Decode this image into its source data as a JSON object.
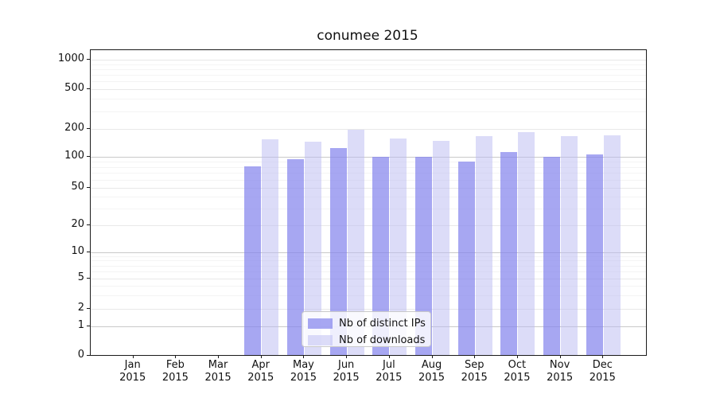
{
  "chart_data": {
    "type": "bar",
    "title": "conumee 2015",
    "categories": [
      {
        "month": "Jan",
        "year": "2015"
      },
      {
        "month": "Feb",
        "year": "2015"
      },
      {
        "month": "Mar",
        "year": "2015"
      },
      {
        "month": "Apr",
        "year": "2015"
      },
      {
        "month": "May",
        "year": "2015"
      },
      {
        "month": "Jun",
        "year": "2015"
      },
      {
        "month": "Jul",
        "year": "2015"
      },
      {
        "month": "Aug",
        "year": "2015"
      },
      {
        "month": "Sep",
        "year": "2015"
      },
      {
        "month": "Oct",
        "year": "2015"
      },
      {
        "month": "Nov",
        "year": "2015"
      },
      {
        "month": "Dec",
        "year": "2015"
      }
    ],
    "series": [
      {
        "name": "Nb of distinct IPs",
        "color": "#8787ed",
        "alpha": 0.73,
        "values": [
          0,
          0,
          0,
          81,
          95,
          124,
          100,
          100,
          91,
          113,
          100,
          107
        ]
      },
      {
        "name": "Nb of downloads",
        "color": "#bbbbf2",
        "alpha": 0.52,
        "values": [
          0,
          0,
          0,
          155,
          146,
          196,
          159,
          150,
          166,
          186,
          167,
          172
        ]
      }
    ],
    "yticks": [
      0,
      1,
      2,
      5,
      10,
      20,
      50,
      100,
      200,
      500,
      1000
    ],
    "yscale": "symlog",
    "ylim": [
      0,
      1250
    ],
    "xlabel": "",
    "ylabel": "",
    "grid": true,
    "legend_position": "lower-center"
  }
}
